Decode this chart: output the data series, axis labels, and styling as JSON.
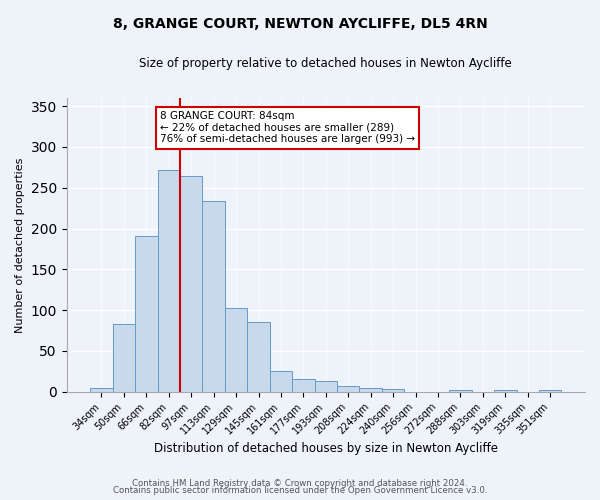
{
  "title": "8, GRANGE COURT, NEWTON AYCLIFFE, DL5 4RN",
  "subtitle": "Size of property relative to detached houses in Newton Aycliffe",
  "xlabel": "Distribution of detached houses by size in Newton Aycliffe",
  "ylabel": "Number of detached properties",
  "bar_labels": [
    "34sqm",
    "50sqm",
    "66sqm",
    "82sqm",
    "97sqm",
    "113sqm",
    "129sqm",
    "145sqm",
    "161sqm",
    "177sqm",
    "193sqm",
    "208sqm",
    "224sqm",
    "240sqm",
    "256sqm",
    "272sqm",
    "288sqm",
    "303sqm",
    "319sqm",
    "335sqm",
    "351sqm"
  ],
  "bar_values": [
    5,
    83,
    191,
    272,
    264,
    234,
    103,
    85,
    25,
    15,
    13,
    7,
    4,
    3,
    0,
    0,
    2,
    0,
    2,
    0,
    2
  ],
  "bar_color": "#c8d9ec",
  "bar_edge_color": "#6699cc",
  "vline_x_idx": 3,
  "vline_color": "#cc0000",
  "annotation_title": "8 GRANGE COURT: 84sqm",
  "annotation_line2": "← 22% of detached houses are smaller (289)",
  "annotation_line3": "76% of semi-detached houses are larger (993) →",
  "annotation_box_color": "#cc0000",
  "ylim": [
    0,
    360
  ],
  "yticks": [
    0,
    50,
    100,
    150,
    200,
    250,
    300,
    350
  ],
  "footer1": "Contains HM Land Registry data © Crown copyright and database right 2024.",
  "footer2": "Contains public sector information licensed under the Open Government Licence v3.0.",
  "bg_color": "#eef2f9",
  "plot_bg_color": "#eef2f9"
}
